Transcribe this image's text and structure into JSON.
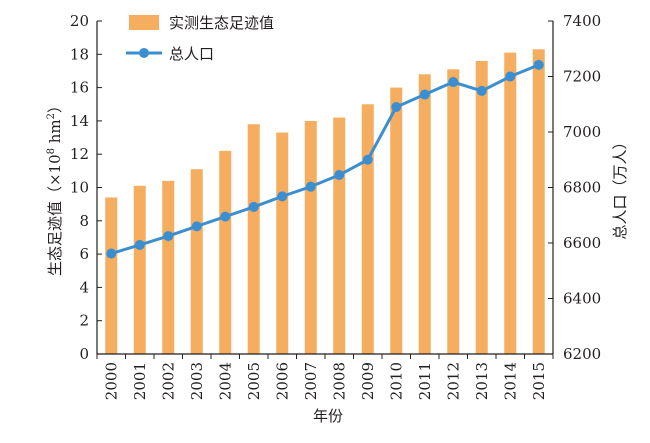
{
  "chart_data": {
    "type": "bar+line",
    "xlabel": "年份",
    "categories": [
      "2000",
      "2001",
      "2002",
      "2003",
      "2004",
      "2005",
      "2006",
      "2007",
      "2008",
      "2009",
      "2010",
      "2011",
      "2012",
      "2013",
      "2014",
      "2015"
    ],
    "left_axis": {
      "label": "生态足迹值（×10⁸ hm²）",
      "label_main": "生态足迹值（",
      "label_mult": "×10",
      "label_exp": "8",
      "label_unit": " hm",
      "label_unit_exp": "2",
      "label_close": "）",
      "ylim": [
        0,
        20
      ],
      "ticks": [
        0,
        2,
        4,
        6,
        8,
        10,
        12,
        14,
        16,
        18,
        20
      ]
    },
    "right_axis": {
      "label": "总人口（万人）",
      "ylim": [
        6200,
        7400
      ],
      "ticks": [
        6200,
        6400,
        6600,
        6800,
        7000,
        7200,
        7400
      ]
    },
    "series": [
      {
        "name": "实测生态足迹值",
        "kind": "bar",
        "axis": "left",
        "color": "#f5ad5f",
        "values": [
          9.4,
          10.1,
          10.4,
          11.1,
          12.2,
          13.8,
          13.3,
          14.0,
          14.2,
          15.0,
          16.0,
          16.8,
          17.1,
          17.6,
          18.1,
          18.3
        ]
      },
      {
        "name": "总人口",
        "kind": "line",
        "axis": "right",
        "color": "#3b8fd0",
        "values": [
          6562,
          6593,
          6625,
          6660,
          6695,
          6730,
          6768,
          6803,
          6845,
          6900,
          7090,
          7135,
          7180,
          7148,
          7200,
          7242
        ]
      }
    ],
    "grid": false,
    "legend_position": "top-left"
  }
}
